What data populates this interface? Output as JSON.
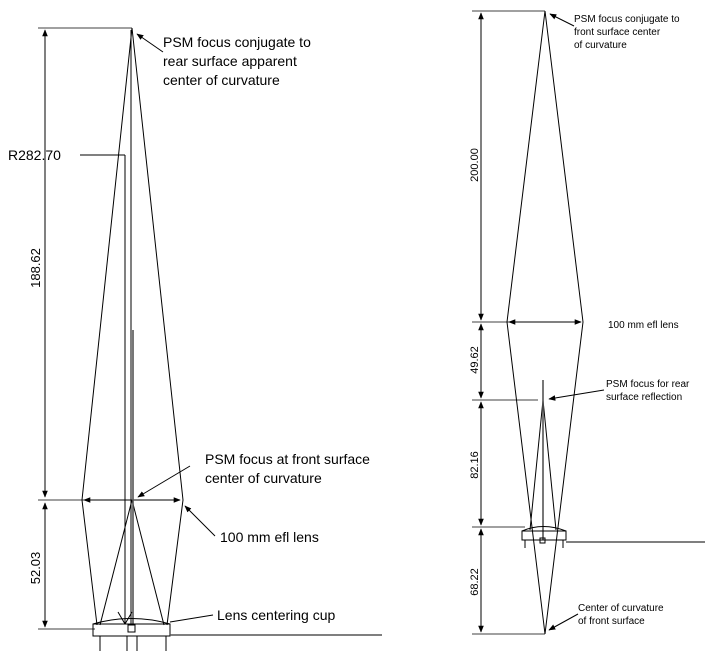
{
  "left_diagram": {
    "callouts": {
      "top_focus": [
        "PSM focus conjugate to",
        "rear surface apparent",
        "center of curvature"
      ],
      "front_focus": [
        "PSM focus at front surface",
        "center of curvature"
      ],
      "lens": "100 mm efl lens",
      "cup": "Lens centering cup",
      "radius": "R282.70"
    },
    "dimensions": {
      "upper": "188.62",
      "lower": "52.03"
    }
  },
  "right_diagram": {
    "callouts": {
      "top_focus": [
        "PSM focus conjugate to",
        "front surface center",
        "of curvature"
      ],
      "lens": "100 mm efl lens",
      "rear_focus": [
        "PSM focus for rear",
        "surface reflection"
      ],
      "bottom": [
        "Center of curvature",
        "of front surface"
      ]
    },
    "dimensions": {
      "d1": "200.00",
      "d2": "49.62",
      "d3": "82.16",
      "d4": "68.22"
    }
  }
}
